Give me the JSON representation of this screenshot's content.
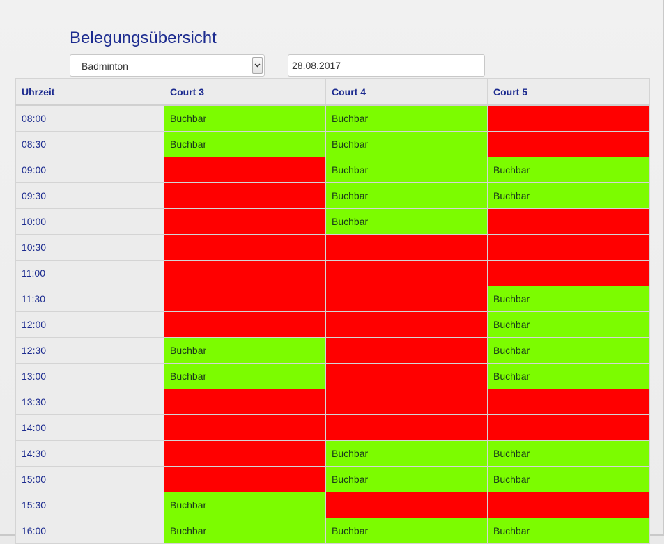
{
  "page": {
    "title": "Belegungsübersicht"
  },
  "filters": {
    "sport_value": "Badminton",
    "date_value": "28.08.2017"
  },
  "colors": {
    "available": "#7cfc00",
    "booked": "#ff0000",
    "heading": "#1c2b8f"
  },
  "table": {
    "headers": [
      "Uhrzeit",
      "Court 3",
      "Court 4",
      "Court 5"
    ],
    "rows": [
      {
        "time": "08:00",
        "cells": [
          "Buchbar",
          "Buchbar",
          ""
        ]
      },
      {
        "time": "08:30",
        "cells": [
          "Buchbar",
          "Buchbar",
          ""
        ]
      },
      {
        "time": "09:00",
        "cells": [
          "",
          "Buchbar",
          "Buchbar"
        ]
      },
      {
        "time": "09:30",
        "cells": [
          "",
          "Buchbar",
          "Buchbar"
        ]
      },
      {
        "time": "10:00",
        "cells": [
          "",
          "Buchbar",
          ""
        ]
      },
      {
        "time": "10:30",
        "cells": [
          "",
          "",
          ""
        ]
      },
      {
        "time": "11:00",
        "cells": [
          "",
          "",
          ""
        ]
      },
      {
        "time": "11:30",
        "cells": [
          "",
          "",
          "Buchbar"
        ]
      },
      {
        "time": "12:00",
        "cells": [
          "",
          "",
          "Buchbar"
        ]
      },
      {
        "time": "12:30",
        "cells": [
          "Buchbar",
          "",
          "Buchbar"
        ]
      },
      {
        "time": "13:00",
        "cells": [
          "Buchbar",
          "",
          "Buchbar"
        ]
      },
      {
        "time": "13:30",
        "cells": [
          "",
          "",
          ""
        ]
      },
      {
        "time": "14:00",
        "cells": [
          "",
          "",
          ""
        ]
      },
      {
        "time": "14:30",
        "cells": [
          "",
          "Buchbar",
          "Buchbar"
        ]
      },
      {
        "time": "15:00",
        "cells": [
          "",
          "Buchbar",
          "Buchbar"
        ]
      },
      {
        "time": "15:30",
        "cells": [
          "Buchbar",
          "",
          ""
        ]
      },
      {
        "time": "16:00",
        "cells": [
          "Buchbar",
          "Buchbar",
          "Buchbar"
        ]
      }
    ]
  }
}
